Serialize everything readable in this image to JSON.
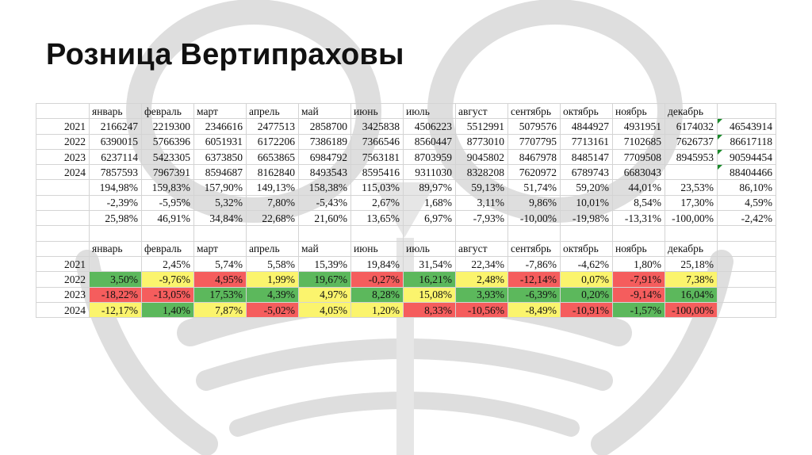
{
  "title": "Розница Вертипраховы",
  "background_icon": "owl-watermark",
  "colors": {
    "green": "#5cb85c",
    "red": "#f55d5d",
    "yellow": "#fbf46d"
  },
  "months": [
    "январь",
    "февраль",
    "март",
    "апрель",
    "май",
    "июнь",
    "июль",
    "август",
    "сентябрь",
    "октябрь",
    "ноябрь",
    "декабрь"
  ],
  "sales": [
    {
      "year": "2021",
      "values": [
        "2166247",
        "2219300",
        "2346616",
        "2477513",
        "2858700",
        "3425838",
        "4506223",
        "5512991",
        "5079576",
        "4844927",
        "4931951",
        "6174032"
      ],
      "total": "46543914"
    },
    {
      "year": "2022",
      "values": [
        "6390015",
        "5766396",
        "6051931",
        "6172206",
        "7386189",
        "7366546",
        "8560447",
        "8773010",
        "7707795",
        "7713161",
        "7102685",
        "7626737"
      ],
      "total": "86617118"
    },
    {
      "year": "2023",
      "values": [
        "6237114",
        "5423305",
        "6373850",
        "6653865",
        "6984792",
        "7563181",
        "8703959",
        "9045802",
        "8467978",
        "8485147",
        "7709508",
        "8945953"
      ],
      "total": "90594454"
    },
    {
      "year": "2024",
      "values": [
        "7857593",
        "7967391",
        "8594687",
        "8162840",
        "8493543",
        "8595416",
        "9311030",
        "8328208",
        "7620972",
        "6789743",
        "6683043",
        ""
      ],
      "total": "88404466"
    }
  ],
  "ratios": [
    {
      "values": [
        "194,98%",
        "159,83%",
        "157,90%",
        "149,13%",
        "158,38%",
        "115,03%",
        "89,97%",
        "59,13%",
        "51,74%",
        "59,20%",
        "44,01%",
        "23,53%"
      ],
      "total": "86,10%"
    },
    {
      "values": [
        "-2,39%",
        "-5,95%",
        "5,32%",
        "7,80%",
        "-5,43%",
        "2,67%",
        "1,68%",
        "3,11%",
        "9,86%",
        "10,01%",
        "8,54%",
        "17,30%"
      ],
      "total": "4,59%"
    },
    {
      "values": [
        "25,98%",
        "46,91%",
        "34,84%",
        "22,68%",
        "21,60%",
        "13,65%",
        "6,97%",
        "-7,93%",
        "-10,00%",
        "-19,98%",
        "-13,31%",
        "-100,00%"
      ],
      "total": "-2,42%"
    }
  ],
  "growth": [
    {
      "year": "2021",
      "values": [
        "",
        "2,45%",
        "5,74%",
        "5,58%",
        "15,39%",
        "19,84%",
        "31,54%",
        "22,34%",
        "-7,86%",
        "-4,62%",
        "1,80%",
        "25,18%"
      ],
      "colors": [
        "",
        "",
        "",
        "",
        "",
        "",
        "",
        "",
        "",
        "",
        "",
        ""
      ]
    },
    {
      "year": "2022",
      "values": [
        "3,50%",
        "-9,76%",
        "4,95%",
        "1,99%",
        "19,67%",
        "-0,27%",
        "16,21%",
        "2,48%",
        "-12,14%",
        "0,07%",
        "-7,91%",
        "7,38%"
      ],
      "colors": [
        "green",
        "yellow",
        "red",
        "yellow",
        "green",
        "red",
        "green",
        "yellow",
        "red",
        "yellow",
        "red",
        "yellow"
      ]
    },
    {
      "year": "2023",
      "values": [
        "-18,22%",
        "-13,05%",
        "17,53%",
        "4,39%",
        "4,97%",
        "8,28%",
        "15,08%",
        "3,93%",
        "-6,39%",
        "0,20%",
        "-9,14%",
        "16,04%"
      ],
      "colors": [
        "red",
        "red",
        "green",
        "green",
        "yellow",
        "green",
        "yellow",
        "green",
        "green",
        "green",
        "red",
        "green"
      ]
    },
    {
      "year": "2024",
      "values": [
        "-12,17%",
        "1,40%",
        "7,87%",
        "-5,02%",
        "4,05%",
        "1,20%",
        "8,33%",
        "-10,56%",
        "-8,49%",
        "-10,91%",
        "-1,57%",
        "-100,00%"
      ],
      "colors": [
        "yellow",
        "green",
        "yellow",
        "red",
        "yellow",
        "yellow",
        "red",
        "red",
        "yellow",
        "red",
        "green",
        "red"
      ]
    }
  ]
}
